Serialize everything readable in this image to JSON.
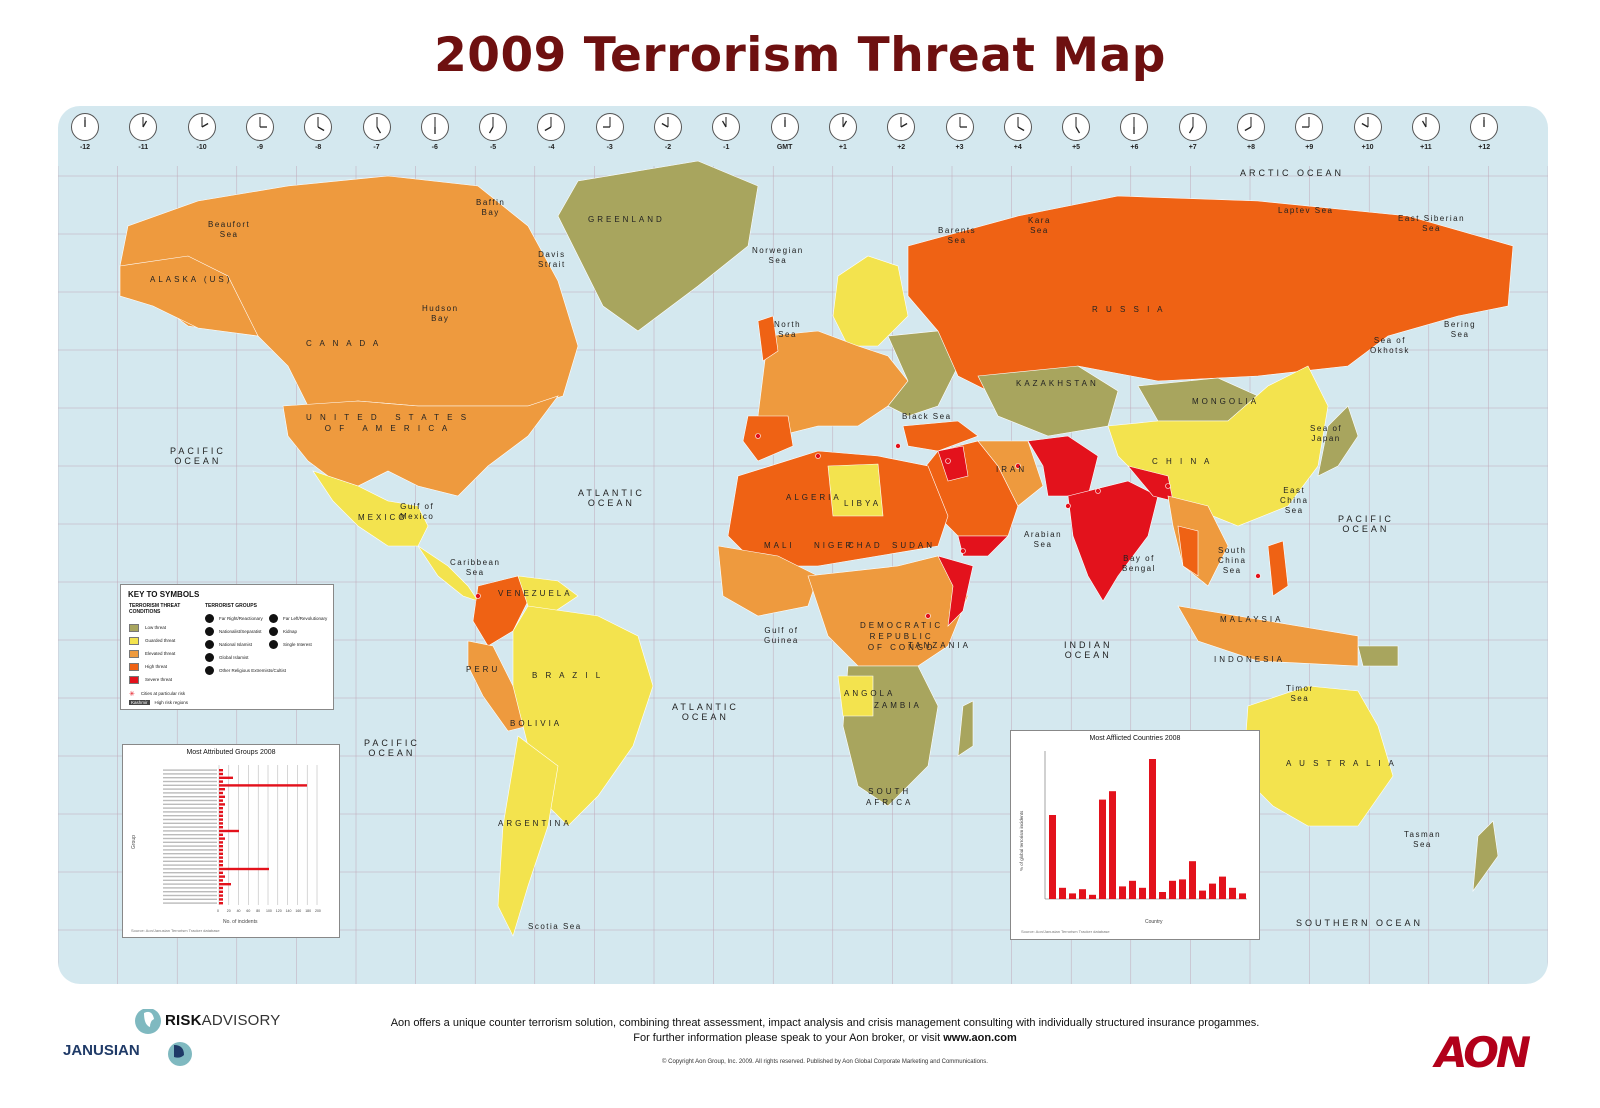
{
  "title": "2009 Terrorism Threat Map",
  "colors": {
    "ocean": "#d4e8ef",
    "low": "#a8a55e",
    "guarded": "#f3e34e",
    "elevated": "#ee9a3e",
    "high": "#ef6214",
    "severe": "#e3121c",
    "title": "#6e1010",
    "aon": "#b2001a"
  },
  "time_zones": [
    "-12",
    "-11",
    "-10",
    "-9",
    "-8",
    "-7",
    "-6",
    "-5",
    "-4",
    "-3",
    "-2",
    "-1",
    "GMT",
    "+1",
    "+2",
    "+3",
    "+4",
    "+5",
    "+6",
    "+7",
    "+8",
    "+9",
    "+10",
    "+11",
    "+12"
  ],
  "oceans": {
    "arctic": "ARCTIC OCEAN",
    "pacific_n_w": "PACIFIC\nOCEAN",
    "pacific_n_e": "PACIFIC\nOCEAN",
    "pacific_s": "PACIFIC\nOCEAN",
    "atlantic_n": "ATLANTIC\nOCEAN",
    "atlantic_s": "ATLANTIC\nOCEAN",
    "indian": "INDIAN\nOCEAN",
    "southern": "SOUTHERN OCEAN"
  },
  "seas": {
    "beaufort": "Beaufort\nSea",
    "baffin": "Baffin\nBay",
    "davis": "Davis\nStrait",
    "hudson": "Hudson\nBay",
    "norwegian": "Norwegian\nSea",
    "barents": "Barents\nSea",
    "kara": "Kara\nSea",
    "laptev": "Laptev Sea",
    "east_siberian": "East Siberian\nSea",
    "bering": "Bering\nSea",
    "okhotsk": "Sea of\nOkhotsk",
    "japan": "Sea of\nJapan",
    "east_china": "East\nChina\nSea",
    "south_china": "South\nChina\nSea",
    "bengal": "Bay of\nBengal",
    "arabian": "Arabian\nSea",
    "north_sea": "North\nSea",
    "black_sea": "Black Sea",
    "caribbean": "Caribbean\nSea",
    "mexico": "Gulf of\nMexico",
    "guinea": "Gulf of\nGuinea",
    "timor": "Timor\nSea",
    "tasman": "Tasman\nSea",
    "scotia": "Scotia Sea"
  },
  "countries": {
    "greenland": "GREENLAND",
    "canada": "C A N A D A",
    "usa": "U N I T E D   S T A T E S\nO F   A M E R I C A",
    "mexico": "MEXICO",
    "russia": "R U S S I A",
    "china": "C H I N A",
    "brazil": "B R A Z I L",
    "australia": "A U S T R A L I A",
    "kazakhstan": "KAZAKHSTAN",
    "mongolia": "MONGOLIA",
    "argentina": "ARGENTINA",
    "bolivia": "BOLIVIA",
    "peru": "PERU",
    "libya": "LIBYA",
    "algeria": "ALGERIA",
    "mali": "MALI",
    "niger": "NIGER",
    "chad": "CHAD",
    "sudan": "SUDAN",
    "angola": "ANGOLA",
    "south_africa": "SOUTH\nAFRICA",
    "tanzania": "TANZANIA",
    "zambia": "ZAMBIA",
    "drc": "DEMOCRATIC\nREPUBLIC\nOF CONGO",
    "indonesia": "INDONESIA",
    "malaysia": "MALAYSIA",
    "iran": "IRAN",
    "venezuela": "VENEZUELA",
    "alaska": "ALASKA (US)"
  },
  "key": {
    "title": "KEY TO SYMBOLS",
    "conditions_heading": "TERRORISM THREAT\nCONDITIONS",
    "groups_heading": "TERRORIST GROUPS",
    "conditions": [
      {
        "label": "Low threat",
        "color": "#a8a55e"
      },
      {
        "label": "Guarded threat",
        "color": "#f3e34e"
      },
      {
        "label": "Elevated threat",
        "color": "#ee9a3e"
      },
      {
        "label": "High threat",
        "color": "#ef6214"
      },
      {
        "label": "Severe threat",
        "color": "#e3121c"
      }
    ],
    "cities_label": "Cities at particular risk",
    "region_tag": "Kashmir",
    "region_label": "High risk regions",
    "groups_left": [
      "Far Right/Reactionary",
      "Nationalist/Separatist",
      "National Islamist",
      "Global Islamist",
      "Other Religious Extremists/Cultist"
    ],
    "groups_right": [
      "Far Left/Revolutionary",
      "Kidnap",
      "Single Interest"
    ]
  },
  "groups_chart": {
    "title": "Most Attributed Groups 2008",
    "ylabel": "Group",
    "xlabel": "No. of incidents",
    "source": "Source: Aon/Janusian Terrorism Tracker database",
    "tick_labels": [
      "0",
      "20",
      "40",
      "60",
      "80",
      "100",
      "120",
      "140",
      "160",
      "180",
      "200"
    ]
  },
  "countries_chart": {
    "title": "Most Afflicted Countries 2008",
    "ylabel": "% of global terrorism incidents",
    "xlabel": "Country",
    "source": "Source: Aon/Janusian Terrorism Tracker database"
  },
  "footer": {
    "line1": "Aon offers a unique counter terrorism solution, combining threat assessment, impact analysis and crisis management consulting with individually structured insurance progammes.",
    "line2_prefix": "For further information please speak to your Aon broker, or visit ",
    "line2_link": "www.aon.com",
    "copyright": "© Copyright Aon Group, Inc. 2009.  All rights reserved.  Published by Aon Global Corporate Marketing and Communications."
  },
  "logos": {
    "risk_bold": "RISK",
    "risk_rest": "ADVISORY",
    "janusian": "JANUSIAN",
    "aon": "AON"
  }
}
